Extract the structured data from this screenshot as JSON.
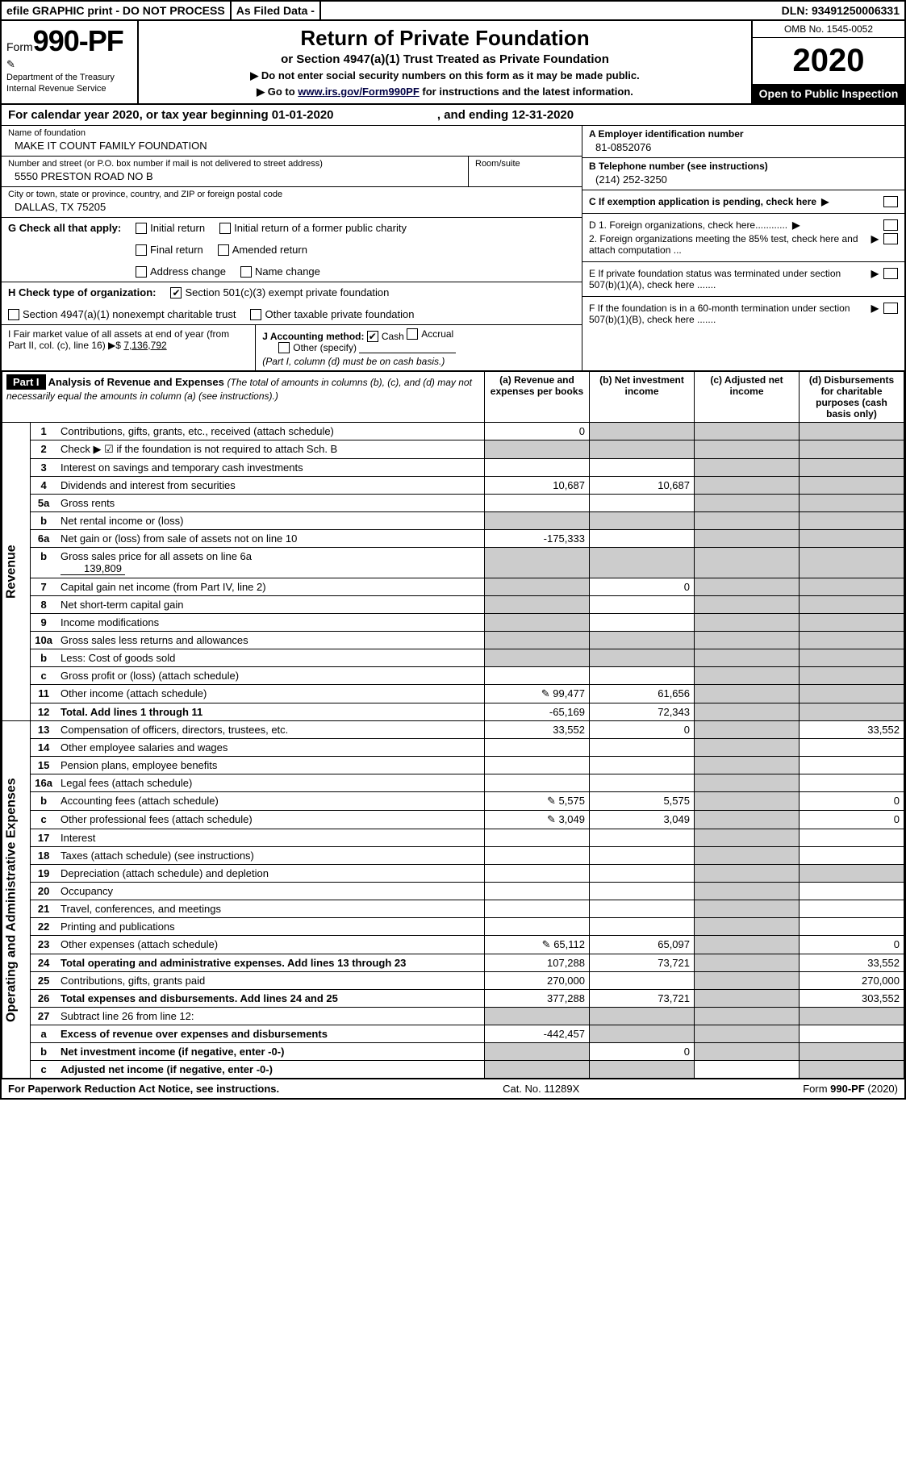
{
  "topbar": {
    "efile": "efile GRAPHIC print - DO NOT PROCESS",
    "asfiled": "As Filed Data -",
    "dln": "DLN: 93491250006331"
  },
  "header": {
    "form_prefix": "Form",
    "form_number": "990-PF",
    "dept1": "Department of the Treasury",
    "dept2": "Internal Revenue Service",
    "title": "Return of Private Foundation",
    "subtitle1": "or Section 4947(a)(1) Trust Treated as Private Foundation",
    "subtitle2a": "▶ Do not enter social security numbers on this form as it may be made public.",
    "subtitle2b": "▶ Go to ",
    "link": "www.irs.gov/Form990PF",
    "subtitle2c": " for instructions and the latest information.",
    "omb": "OMB No. 1545-0052",
    "year": "2020",
    "inspect": "Open to Public Inspection"
  },
  "calyear": {
    "text_a": "For calendar year 2020, or tax year beginning 01-01-2020",
    "text_b": ", and ending 12-31-2020"
  },
  "info": {
    "name_label": "Name of foundation",
    "name": "MAKE IT COUNT FAMILY FOUNDATION",
    "addr_label": "Number and street (or P.O. box number if mail is not delivered to street address)",
    "addr": "5550 PRESTON ROAD NO B",
    "room_label": "Room/suite",
    "city_label": "City or town, state or province, country, and ZIP or foreign postal code",
    "city": "DALLAS, TX  75205",
    "a_label": "A Employer identification number",
    "a_val": "81-0852076",
    "b_label": "B Telephone number (see instructions)",
    "b_val": "(214) 252-3250",
    "c_label": "C If exemption application is pending, check here"
  },
  "g": {
    "label": "G Check all that apply:",
    "opts": [
      "Initial return",
      "Initial return of a former public charity",
      "Final return",
      "Amended return",
      "Address change",
      "Name change"
    ]
  },
  "h": {
    "label": "H Check type of organization:",
    "opt1": "Section 501(c)(3) exempt private foundation",
    "opt2": "Section 4947(a)(1) nonexempt charitable trust",
    "opt3": "Other taxable private foundation"
  },
  "i": {
    "label": "I Fair market value of all assets at end of year (from Part II, col. (c), line 16) ▶$ ",
    "val": "7,136,792"
  },
  "j": {
    "label": "J Accounting method:",
    "cash": "Cash",
    "accrual": "Accrual",
    "other": "Other (specify)",
    "note": "(Part I, column (d) must be on cash basis.)"
  },
  "d": {
    "d1": "D 1. Foreign organizations, check here............",
    "d2": "2. Foreign organizations meeting the 85% test, check here and attach computation ...",
    "e": "E  If private foundation status was terminated under section 507(b)(1)(A), check here .......",
    "f": "F  If the foundation is in a 60-month termination under section 507(b)(1)(B), check here ......."
  },
  "part1": {
    "label": "Part I",
    "title": "Analysis of Revenue and Expenses",
    "note": "(The total of amounts in columns (b), (c), and (d) may not necessarily equal the amounts in column (a) (see instructions).)",
    "col_a": "(a)  Revenue and expenses per books",
    "col_b": "(b)  Net investment income",
    "col_c": "(c)  Adjusted net income",
    "col_d": "(d)  Disbursements for charitable purposes (cash basis only)",
    "rev_label": "Revenue",
    "exp_label": "Operating and Administrative Expenses"
  },
  "rows": {
    "r1": {
      "n": "1",
      "d": "Contributions, gifts, grants, etc., received (attach schedule)",
      "a": "0"
    },
    "r2": {
      "n": "2",
      "d": "Check ▶ ☑ if the foundation is not required to attach Sch. B"
    },
    "r3": {
      "n": "3",
      "d": "Interest on savings and temporary cash investments"
    },
    "r4": {
      "n": "4",
      "d": "Dividends and interest from securities",
      "a": "10,687",
      "b": "10,687"
    },
    "r5a": {
      "n": "5a",
      "d": "Gross rents"
    },
    "r5b": {
      "n": "b",
      "d": "Net rental income or (loss)"
    },
    "r6a": {
      "n": "6a",
      "d": "Net gain or (loss) from sale of assets not on line 10",
      "a": "-175,333"
    },
    "r6b": {
      "n": "b",
      "d": "Gross sales price for all assets on line 6a",
      "sub": "139,809"
    },
    "r7": {
      "n": "7",
      "d": "Capital gain net income (from Part IV, line 2)",
      "b": "0"
    },
    "r8": {
      "n": "8",
      "d": "Net short-term capital gain"
    },
    "r9": {
      "n": "9",
      "d": "Income modifications"
    },
    "r10a": {
      "n": "10a",
      "d": "Gross sales less returns and allowances"
    },
    "r10b": {
      "n": "b",
      "d": "Less: Cost of goods sold"
    },
    "r10c": {
      "n": "c",
      "d": "Gross profit or (loss) (attach schedule)"
    },
    "r11": {
      "n": "11",
      "d": "Other income (attach schedule)",
      "a": "99,477",
      "b": "61,656",
      "icon": true
    },
    "r12": {
      "n": "12",
      "d": "Total. Add lines 1 through 11",
      "a": "-65,169",
      "b": "72,343",
      "bold": true
    },
    "r13": {
      "n": "13",
      "d": "Compensation of officers, directors, trustees, etc.",
      "a": "33,552",
      "b": "0",
      "dd": "33,552"
    },
    "r14": {
      "n": "14",
      "d": "Other employee salaries and wages"
    },
    "r15": {
      "n": "15",
      "d": "Pension plans, employee benefits"
    },
    "r16a": {
      "n": "16a",
      "d": "Legal fees (attach schedule)"
    },
    "r16b": {
      "n": "b",
      "d": "Accounting fees (attach schedule)",
      "a": "5,575",
      "b": "5,575",
      "dd": "0",
      "icon": true
    },
    "r16c": {
      "n": "c",
      "d": "Other professional fees (attach schedule)",
      "a": "3,049",
      "b": "3,049",
      "dd": "0",
      "icon": true
    },
    "r17": {
      "n": "17",
      "d": "Interest"
    },
    "r18": {
      "n": "18",
      "d": "Taxes (attach schedule) (see instructions)"
    },
    "r19": {
      "n": "19",
      "d": "Depreciation (attach schedule) and depletion"
    },
    "r20": {
      "n": "20",
      "d": "Occupancy"
    },
    "r21": {
      "n": "21",
      "d": "Travel, conferences, and meetings"
    },
    "r22": {
      "n": "22",
      "d": "Printing and publications"
    },
    "r23": {
      "n": "23",
      "d": "Other expenses (attach schedule)",
      "a": "65,112",
      "b": "65,097",
      "dd": "0",
      "icon": true
    },
    "r24": {
      "n": "24",
      "d": "Total operating and administrative expenses. Add lines 13 through 23",
      "a": "107,288",
      "b": "73,721",
      "dd": "33,552",
      "bold": true
    },
    "r25": {
      "n": "25",
      "d": "Contributions, gifts, grants paid",
      "a": "270,000",
      "dd": "270,000"
    },
    "r26": {
      "n": "26",
      "d": "Total expenses and disbursements. Add lines 24 and 25",
      "a": "377,288",
      "b": "73,721",
      "dd": "303,552",
      "bold": true
    },
    "r27": {
      "n": "27",
      "d": "Subtract line 26 from line 12:"
    },
    "r27a": {
      "n": "a",
      "d": "Excess of revenue over expenses and disbursements",
      "a": "-442,457",
      "bold": true
    },
    "r27b": {
      "n": "b",
      "d": "Net investment income (if negative, enter -0-)",
      "b": "0",
      "bold": true
    },
    "r27c": {
      "n": "c",
      "d": "Adjusted net income (if negative, enter -0-)",
      "bold": true
    }
  },
  "footer": {
    "left": "For Paperwork Reduction Act Notice, see instructions.",
    "mid": "Cat. No. 11289X",
    "right": "Form 990-PF (2020)"
  },
  "colors": {
    "shade": "#cccccc",
    "black": "#000000"
  }
}
